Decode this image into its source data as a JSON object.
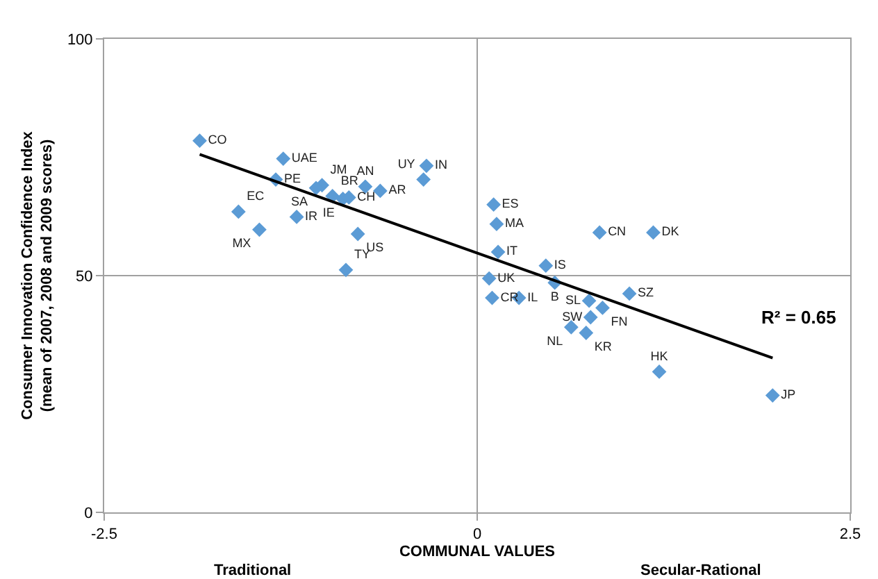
{
  "chart_data": {
    "type": "scatter",
    "xlabel": "COMMUNAL VALUES",
    "ylabel": "Consumer Innovation Confidence Index\n(mean of 2007, 2008 and 2009 scores)",
    "xlim": [
      -2.5,
      2.5
    ],
    "xticks": [
      -2.5,
      0,
      2.5
    ],
    "ylim": [
      0,
      100
    ],
    "yticks": [
      0,
      50,
      100
    ],
    "grid": true,
    "marker": "diamond",
    "annotations": [
      "Traditional",
      "Secular-Rational",
      "R² = 0.65"
    ],
    "series": [
      {
        "color": "#5b9bd5",
        "x": [
          -1.86,
          -1.3,
          -1.35,
          -1.04,
          -1.08,
          -0.97,
          -0.9,
          -0.86,
          -0.75,
          -0.65,
          -0.36,
          -0.34,
          -1.6,
          -1.46,
          -1.21,
          -0.8,
          -0.88,
          0.11,
          0.13,
          0.14,
          0.82,
          1.18,
          0.46,
          0.08,
          0.52,
          0.1,
          0.28,
          1.02,
          0.75,
          0.84,
          0.76,
          0.63,
          0.73,
          1.22,
          1.98
        ],
        "values": [
          78.5,
          74.7,
          70.3,
          69.1,
          68.5,
          66.8,
          66.2,
          66.5,
          68.8,
          67.9,
          70.3,
          73.2,
          63.5,
          59.7,
          62.4,
          58.8,
          51.2,
          65.0,
          60.9,
          55.0,
          59.1,
          59.1,
          52.1,
          49.4,
          48.5,
          45.3,
          45.3,
          46.2,
          44.7,
          43.2,
          41.2,
          39.1,
          37.9,
          29.7,
          24.7
        ],
        "value_labels": [
          "CO",
          "UAE",
          "PE",
          "JM",
          "SA",
          "BR",
          "IE",
          "CH",
          "AN",
          "AR",
          "UY",
          "IN",
          "EC",
          "MX",
          "IR",
          "US",
          "TY",
          "ES",
          "MA",
          "IT",
          "CN",
          "DK",
          "IS",
          "UK",
          "B",
          "CR",
          "IL",
          "SZ",
          "SL",
          "FN",
          "SW",
          "NL",
          "KR",
          "HK",
          "JP"
        ]
      },
      {
        "type": "line",
        "marker": "none",
        "color": "#000000",
        "x": [
          -1.86,
          1.98
        ],
        "values": [
          75.6,
          32.6
        ]
      }
    ]
  }
}
